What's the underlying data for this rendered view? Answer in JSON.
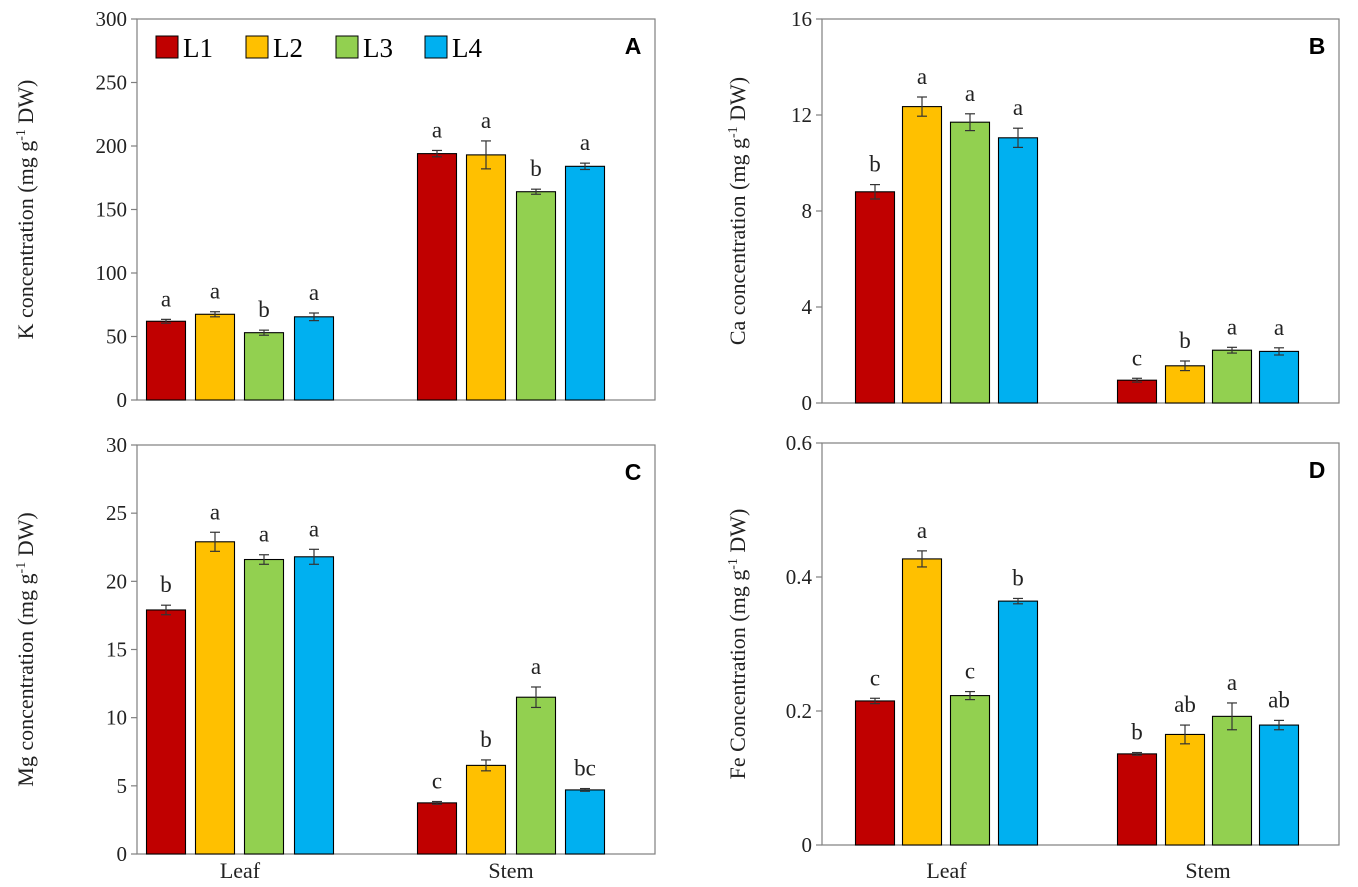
{
  "figure": {
    "legend": [
      {
        "name": "L1",
        "color": "#C00000"
      },
      {
        "name": "L2",
        "color": "#FFC000"
      },
      {
        "name": "L3",
        "color": "#92D050"
      },
      {
        "name": "L4",
        "color": "#00B0F0"
      }
    ]
  },
  "chart_data": [
    {
      "type": "bar",
      "panel": "A",
      "title": "",
      "xlabel": "",
      "ylabel_main": "K concentration",
      "ylabel_unit_pre": "(mg g",
      "ylabel_unit_sup": "-1",
      "ylabel_unit_post": " DW)",
      "ylim": [
        0,
        300
      ],
      "yticks": [
        0,
        50,
        100,
        150,
        200,
        250,
        300
      ],
      "ytick_labels": [
        "0",
        "50",
        "100",
        "150",
        "200",
        "250",
        "300"
      ],
      "categories": [
        "Leaf",
        "Stem"
      ],
      "show_categories": false,
      "series": [
        {
          "name": "L1",
          "values": [
            62,
            194
          ],
          "errors": [
            1.5,
            2.5
          ],
          "sig": [
            "a",
            "a"
          ]
        },
        {
          "name": "L2",
          "values": [
            67.5,
            193
          ],
          "errors": [
            2,
            11
          ],
          "sig": [
            "a",
            "a"
          ]
        },
        {
          "name": "L3",
          "values": [
            53,
            164
          ],
          "errors": [
            2,
            2
          ],
          "sig": [
            "b",
            "b"
          ]
        },
        {
          "name": "L4",
          "values": [
            65.5,
            184
          ],
          "errors": [
            3,
            2.5
          ],
          "sig": [
            "a",
            "a"
          ]
        }
      ],
      "show_legend": true
    },
    {
      "type": "bar",
      "panel": "B",
      "title": "",
      "xlabel": "",
      "ylabel_main": "Ca concentration",
      "ylabel_unit_pre": "(mg g",
      "ylabel_unit_sup": "-1",
      "ylabel_unit_post": " DW)",
      "ylim": [
        0,
        16
      ],
      "yticks": [
        0,
        4,
        8,
        12,
        16
      ],
      "ytick_labels": [
        "0",
        "4",
        "8",
        "12",
        "16"
      ],
      "categories": [
        "Leaf",
        "Stem"
      ],
      "show_categories": false,
      "series": [
        {
          "name": "L1",
          "values": [
            8.8,
            0.95
          ],
          "errors": [
            0.3,
            0.08
          ],
          "sig": [
            "b",
            "c"
          ]
        },
        {
          "name": "L2",
          "values": [
            12.35,
            1.55
          ],
          "errors": [
            0.4,
            0.2
          ],
          "sig": [
            "a",
            "b"
          ]
        },
        {
          "name": "L3",
          "values": [
            11.7,
            2.2
          ],
          "errors": [
            0.35,
            0.12
          ],
          "sig": [
            "a",
            "a"
          ]
        },
        {
          "name": "L4",
          "values": [
            11.05,
            2.15
          ],
          "errors": [
            0.4,
            0.15
          ],
          "sig": [
            "a",
            "a"
          ]
        }
      ],
      "show_legend": false
    },
    {
      "type": "bar",
      "panel": "C",
      "title": "",
      "xlabel": "",
      "ylabel_main": "Mg concentration",
      "ylabel_unit_pre": "(mg g",
      "ylabel_unit_sup": "-1",
      "ylabel_unit_post": " DW)",
      "ylim": [
        0,
        30
      ],
      "yticks": [
        0,
        5,
        10,
        15,
        20,
        25,
        30
      ],
      "ytick_labels": [
        "0",
        "5",
        "10",
        "15",
        "20",
        "25",
        "30"
      ],
      "categories": [
        "Leaf",
        "Stem"
      ],
      "show_categories": true,
      "series": [
        {
          "name": "L1",
          "values": [
            17.9,
            3.75
          ],
          "errors": [
            0.35,
            0.1
          ],
          "sig": [
            "b",
            "c"
          ]
        },
        {
          "name": "L2",
          "values": [
            22.9,
            6.5
          ],
          "errors": [
            0.7,
            0.4
          ],
          "sig": [
            "a",
            "b"
          ]
        },
        {
          "name": "L3",
          "values": [
            21.6,
            11.5
          ],
          "errors": [
            0.35,
            0.75
          ],
          "sig": [
            "a",
            "a"
          ]
        },
        {
          "name": "L4",
          "values": [
            21.8,
            4.7
          ],
          "errors": [
            0.55,
            0.1
          ],
          "sig": [
            "a",
            "bc"
          ]
        }
      ],
      "show_legend": false
    },
    {
      "type": "bar",
      "panel": "D",
      "title": "",
      "xlabel": "",
      "ylabel_main": "Fe Concentration",
      "ylabel_unit_pre": "(mg g",
      "ylabel_unit_sup": "-1",
      "ylabel_unit_post": " DW)",
      "ylim": [
        0,
        0.6
      ],
      "yticks": [
        0,
        0.2,
        0.4,
        0.6
      ],
      "ytick_labels": [
        "0",
        "0.2",
        "0.4",
        "0.6"
      ],
      "categories": [
        "Leaf",
        "Stem"
      ],
      "show_categories": true,
      "series": [
        {
          "name": "L1",
          "values": [
            0.215,
            0.136
          ],
          "errors": [
            0.004,
            0.002
          ],
          "sig": [
            "c",
            "b"
          ]
        },
        {
          "name": "L2",
          "values": [
            0.427,
            0.165
          ],
          "errors": [
            0.012,
            0.014
          ],
          "sig": [
            "a",
            "ab"
          ]
        },
        {
          "name": "L3",
          "values": [
            0.223,
            0.192
          ],
          "errors": [
            0.006,
            0.02
          ],
          "sig": [
            "c",
            "a"
          ]
        },
        {
          "name": "L4",
          "values": [
            0.364,
            0.179
          ],
          "errors": [
            0.004,
            0.007
          ],
          "sig": [
            "b",
            "ab"
          ]
        }
      ],
      "show_legend": false
    }
  ]
}
